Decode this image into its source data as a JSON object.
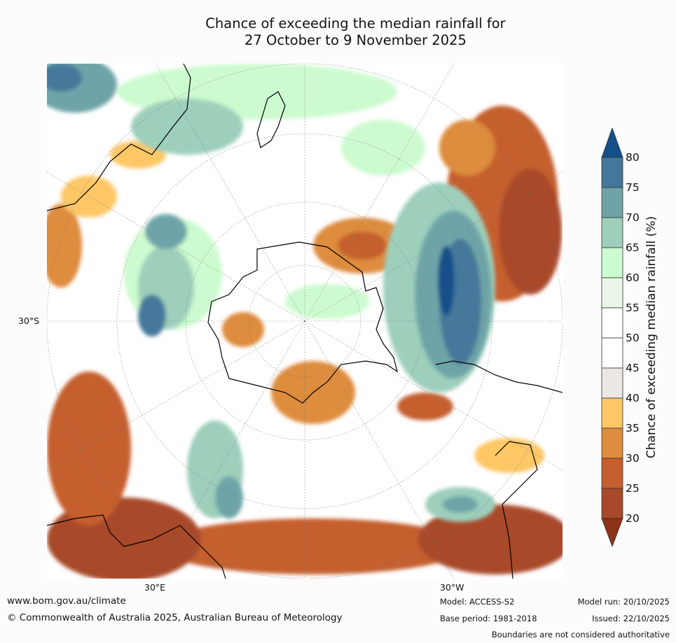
{
  "title": {
    "line1": "Chance of exceeding the median rainfall for",
    "line2": "27 October to 9 November 2025"
  },
  "map": {
    "projection": "south-polar-stereographic",
    "axis_labels": {
      "lat_left": "30°S",
      "lon_bottom_left": "30°E",
      "lon_bottom_right": "30°W"
    }
  },
  "colorbar": {
    "title": "Chance of exceeding median rainfall (%)",
    "ticks": [
      "80",
      "75",
      "70",
      "65",
      "60",
      "55",
      "50",
      "45",
      "40",
      "35",
      "30",
      "25",
      "20"
    ],
    "colors": {
      "above80": "#154f8a",
      "75_80": "#44789a",
      "70_75": "#6ea4a8",
      "65_70": "#9dcfbb",
      "60_65": "#ccfbcf",
      "55_60": "#eaf6ea",
      "50_55": "#ffffff",
      "45_50": "#ffffff",
      "40_45": "#ebe8e3",
      "35_40": "#fdc766",
      "30_35": "#de8c3e",
      "25_30": "#c55f2e",
      "20_25": "#a84a2a",
      "below20": "#8c3319"
    }
  },
  "footer": {
    "website": "www.bom.gov.au/climate",
    "copyright": "© Commonwealth of Australia 2025, Australian Bureau of Meteorology",
    "model": "Model: ACCESS-S2",
    "base_period": "Base period: 1981-2018",
    "model_run": "Model run: 20/10/2025",
    "issued": "Issued: 22/10/2025",
    "disclaimer": "Boundaries are not considered authoritative"
  }
}
